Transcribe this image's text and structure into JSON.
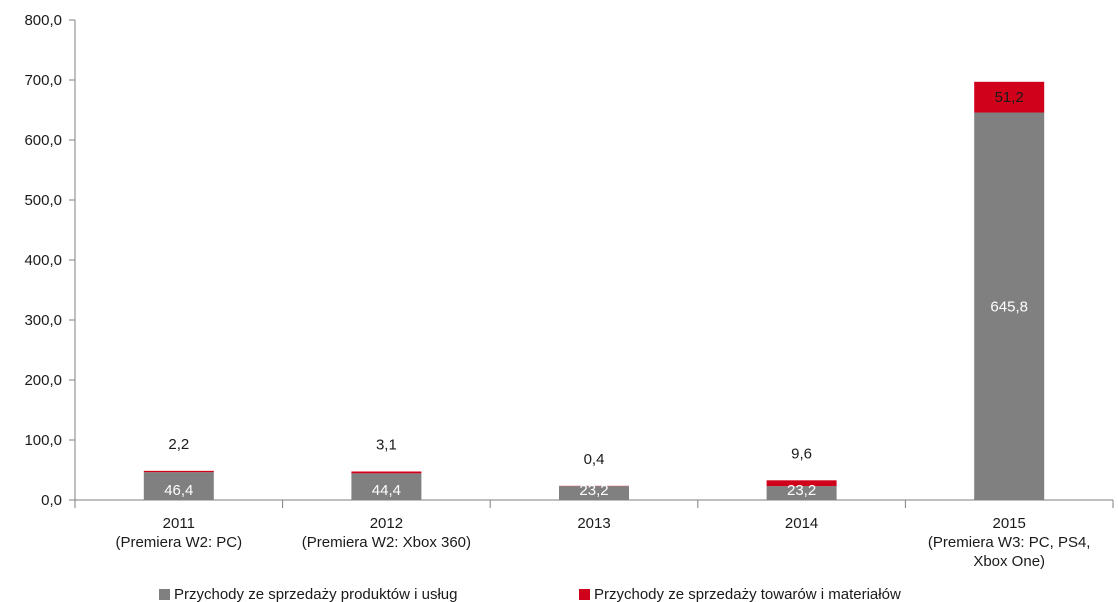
{
  "chart_data": {
    "type": "bar",
    "stacked": true,
    "categories": [
      [
        "2011",
        "(Premiera W2: PC)"
      ],
      [
        "2012",
        "(Premiera W2: Xbox 360)"
      ],
      [
        "2013"
      ],
      [
        "2014"
      ],
      [
        "2015",
        "(Premiera W3: PC, PS4,",
        "Xbox One)"
      ]
    ],
    "series": [
      {
        "name": "Przychody ze sprzedaży produktów i usług",
        "color": "#808080",
        "values": [
          46.4,
          44.4,
          23.2,
          23.2,
          645.8
        ],
        "labels": [
          "46,4",
          "44,4",
          "23,2",
          "23,2",
          "645,8"
        ]
      },
      {
        "name": "Przychody ze sprzedaży towarów i materiałów",
        "color": "#d0021b",
        "values": [
          2.2,
          3.1,
          0.4,
          9.6,
          51.2
        ],
        "labels": [
          "2,2",
          "3,1",
          "0,4",
          "9,6",
          "51,2"
        ]
      }
    ],
    "ylim": [
      0,
      800
    ],
    "yticks": [
      0,
      100,
      200,
      300,
      400,
      500,
      600,
      700,
      800
    ],
    "ytick_labels": [
      "0,0",
      "100,0",
      "200,0",
      "300,0",
      "400,0",
      "500,0",
      "600,0",
      "700,0",
      "800,0"
    ],
    "title": "",
    "xlabel": "",
    "ylabel": "",
    "grid": false,
    "legend_position": "bottom"
  }
}
